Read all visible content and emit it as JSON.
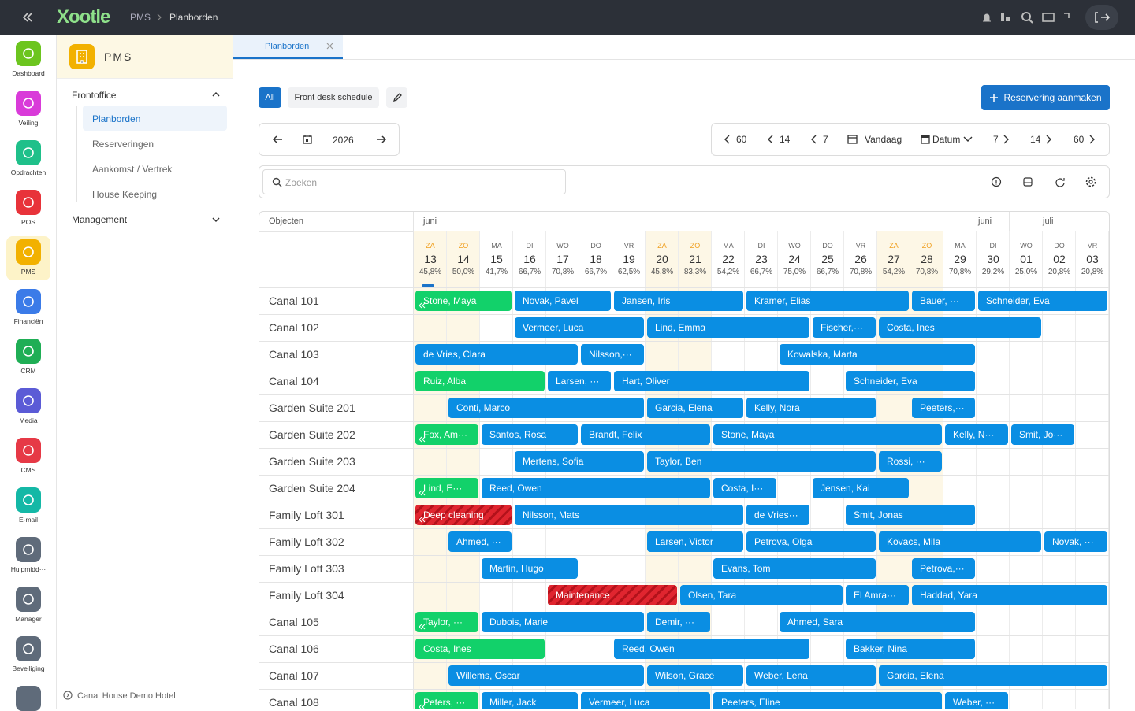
{
  "topbar": {
    "logo": "Xootle",
    "breadcrumb": [
      "PMS",
      "Planborden"
    ]
  },
  "rail": [
    {
      "label": "Dashboard",
      "color": "#6cc51f"
    },
    {
      "label": "Veiling",
      "color": "#d93bd9"
    },
    {
      "label": "Opdrachten",
      "color": "#1fc08a"
    },
    {
      "label": "POS",
      "color": "#e8333a"
    },
    {
      "label": "PMS",
      "color": "#f2b100",
      "active": true
    },
    {
      "label": "Financiën",
      "color": "#3b7be8"
    },
    {
      "label": "CRM",
      "color": "#1fae55"
    },
    {
      "label": "Media",
      "color": "#5b5bd6"
    },
    {
      "label": "CMS",
      "color": "#e63946"
    },
    {
      "label": "E-mail",
      "color": "#14b8a6"
    },
    {
      "label": "Hulpmidd···",
      "color": "#5f6b7a"
    },
    {
      "label": "Manager",
      "color": "#5f6b7a"
    },
    {
      "label": "Beveiliging",
      "color": "#5f6b7a"
    }
  ],
  "sidenav": {
    "title": "PMS",
    "sections": [
      {
        "label": "Frontoffice",
        "items": [
          "Planborden",
          "Reserveringen",
          "Aankomst / Vertrek",
          "House Keeping"
        ]
      },
      {
        "label": "Management"
      }
    ],
    "footer": "Canal House Demo Hotel"
  },
  "tabs": [
    "Planborden"
  ],
  "toolbar": {
    "filters": [
      "All",
      "Front desk schedule"
    ],
    "create_button": "Reservering aanmaken",
    "year": "2026",
    "back": [
      "60",
      "14",
      "7"
    ],
    "today": "Vandaag",
    "date_mode": "Datum",
    "forward": [
      "7",
      "14",
      "60"
    ],
    "search_placeholder": "Zoeken"
  },
  "schedule": {
    "objects_header": "Objecten",
    "months": [
      "juni",
      "juni",
      "juli"
    ],
    "days": [
      {
        "dow": "ZA",
        "day": "13",
        "occupancy": "45,8%",
        "weekend": true
      },
      {
        "dow": "ZO",
        "day": "14",
        "occupancy": "50,0%",
        "weekend": true
      },
      {
        "dow": "MA",
        "day": "15",
        "occupancy": "41,7%"
      },
      {
        "dow": "DI",
        "day": "16",
        "occupancy": "66,7%"
      },
      {
        "dow": "WO",
        "day": "17",
        "occupancy": "70,8%"
      },
      {
        "dow": "DO",
        "day": "18",
        "occupancy": "66,7%"
      },
      {
        "dow": "VR",
        "day": "19",
        "occupancy": "62,5%"
      },
      {
        "dow": "ZA",
        "day": "20",
        "occupancy": "45,8%",
        "weekend": true
      },
      {
        "dow": "ZO",
        "day": "21",
        "occupancy": "83,3%",
        "weekend": true
      },
      {
        "dow": "MA",
        "day": "22",
        "occupancy": "54,2%"
      },
      {
        "dow": "DI",
        "day": "23",
        "occupancy": "66,7%"
      },
      {
        "dow": "WO",
        "day": "24",
        "occupancy": "75,0%"
      },
      {
        "dow": "DO",
        "day": "25",
        "occupancy": "66,7%"
      },
      {
        "dow": "VR",
        "day": "26",
        "occupancy": "70,8%"
      },
      {
        "dow": "ZA",
        "day": "27",
        "occupancy": "54,2%",
        "weekend": true
      },
      {
        "dow": "ZO",
        "day": "28",
        "occupancy": "70,8%",
        "weekend": true
      },
      {
        "dow": "MA",
        "day": "29",
        "occupancy": "70,8%"
      },
      {
        "dow": "DI",
        "day": "30",
        "occupancy": "29,2%"
      },
      {
        "dow": "WO",
        "day": "01",
        "occupancy": "25,0%"
      },
      {
        "dow": "DO",
        "day": "02",
        "occupancy": "20,8%"
      },
      {
        "dow": "VR",
        "day": "03",
        "occupancy": "20,8%"
      }
    ],
    "rows": [
      {
        "name": "Canal 101",
        "bookings": [
          {
            "guest": "Stone, Maya",
            "checkin": "12",
            "checkout": "16",
            "color": "#12d16a"
          },
          {
            "guest": "Novak, Pavel",
            "checkin": "16",
            "checkout": "19",
            "color": "#0a8ee3"
          },
          {
            "guest": "Jansen, Iris",
            "checkin": "19",
            "checkout": "23",
            "color": "#0a8ee3"
          },
          {
            "guest": "Kramer, Elias",
            "checkin": "23",
            "checkout": "28",
            "color": "#0a8ee3"
          },
          {
            "guest": "Bauer, ···",
            "checkin": "28",
            "checkout": "30",
            "color": "#0a8ee3"
          },
          {
            "guest": "Schneider, Eva",
            "checkin": "30",
            "checkout": "04",
            "color": "#0a8ee3"
          }
        ]
      },
      {
        "name": "Canal 102",
        "bookings": [
          {
            "guest": "Vermeer, Luca",
            "checkin": "16",
            "checkout": "20",
            "color": "#0a8ee3"
          },
          {
            "guest": "Lind, Emma",
            "checkin": "20",
            "checkout": "25",
            "color": "#0a8ee3"
          },
          {
            "guest": "Fischer,···",
            "checkin": "25",
            "checkout": "27",
            "color": "#0a8ee3"
          },
          {
            "guest": "Costa, Ines",
            "checkin": "27",
            "checkout": "02",
            "color": "#0a8ee3"
          }
        ]
      },
      {
        "name": "Canal 103",
        "bookings": [
          {
            "guest": "de Vries, Clara",
            "checkin": "13",
            "checkout": "18",
            "color": "#0a8ee3"
          },
          {
            "guest": "Nilsson,···",
            "checkin": "18",
            "checkout": "20",
            "color": "#0a8ee3"
          },
          {
            "guest": "Kowalska, Marta",
            "checkin": "24",
            "checkout": "30",
            "color": "#0a8ee3"
          }
        ]
      },
      {
        "name": "Canal 104",
        "bookings": [
          {
            "guest": "Ruiz, Alba",
            "checkin": "13",
            "checkout": "17",
            "color": "#12d16a"
          },
          {
            "guest": "Larsen, ···",
            "checkin": "17",
            "checkout": "19",
            "color": "#0a8ee3"
          },
          {
            "guest": "Hart, Oliver",
            "checkin": "19",
            "checkout": "25",
            "color": "#0a8ee3"
          },
          {
            "guest": "Schneider, Eva",
            "checkin": "26",
            "checkout": "30",
            "color": "#0a8ee3"
          }
        ]
      },
      {
        "name": "Garden Suite 201",
        "bookings": [
          {
            "guest": "Conti, Marco",
            "checkin": "14",
            "checkout": "20",
            "color": "#0a8ee3"
          },
          {
            "guest": "Garcia, Elena",
            "checkin": "20",
            "checkout": "23",
            "color": "#0a8ee3"
          },
          {
            "guest": "Kelly, Nora",
            "checkin": "23",
            "checkout": "27",
            "color": "#0a8ee3"
          },
          {
            "guest": "Peeters,···",
            "checkin": "28",
            "checkout": "30",
            "color": "#0a8ee3"
          }
        ]
      },
      {
        "name": "Garden Suite 202",
        "bookings": [
          {
            "guest": "Fox, Am···",
            "checkin": "12",
            "checkout": "15",
            "color": "#12d16a"
          },
          {
            "guest": "Santos, Rosa",
            "checkin": "15",
            "checkout": "18",
            "color": "#0a8ee3"
          },
          {
            "guest": "Brandt, Felix",
            "checkin": "18",
            "checkout": "22",
            "color": "#0a8ee3"
          },
          {
            "guest": "Stone, Maya",
            "checkin": "22",
            "checkout": "29",
            "color": "#0a8ee3"
          },
          {
            "guest": "Kelly, N···",
            "checkin": "29",
            "checkout": "01",
            "color": "#0a8ee3"
          },
          {
            "guest": "Smit, Jo···",
            "checkin": "01",
            "checkout": "03",
            "color": "#0a8ee3"
          }
        ]
      },
      {
        "name": "Garden Suite 203",
        "bookings": [
          {
            "guest": "Mertens, Sofia",
            "checkin": "16",
            "checkout": "20",
            "color": "#0a8ee3"
          },
          {
            "guest": "Taylor, Ben",
            "checkin": "20",
            "checkout": "27",
            "color": "#0a8ee3"
          },
          {
            "guest": "Rossi, ···",
            "checkin": "27",
            "checkout": "29",
            "color": "#0a8ee3"
          }
        ]
      },
      {
        "name": "Garden Suite 204",
        "bookings": [
          {
            "guest": "Lind, E···",
            "checkin": "12",
            "checkout": "15",
            "color": "#12d16a"
          },
          {
            "guest": "Reed, Owen",
            "checkin": "15",
            "checkout": "22",
            "color": "#0a8ee3"
          },
          {
            "guest": "Costa, I···",
            "checkin": "22",
            "checkout": "24",
            "color": "#0a8ee3"
          },
          {
            "guest": "Jensen, Kai",
            "checkin": "25",
            "checkout": "28",
            "color": "#0a8ee3"
          }
        ]
      },
      {
        "name": "Family Loft 301",
        "bookings": [
          {
            "guest": "Deep cleaning",
            "checkin": "12",
            "checkout": "16",
            "color": "#e0252f",
            "pattern": "hatched"
          },
          {
            "guest": "Nilsson, Mats",
            "checkin": "16",
            "checkout": "23",
            "color": "#0a8ee3"
          },
          {
            "guest": "de Vries···",
            "checkin": "23",
            "checkout": "25",
            "color": "#0a8ee3"
          },
          {
            "guest": "Smit, Jonas",
            "checkin": "26",
            "checkout": "30",
            "color": "#0a8ee3"
          }
        ]
      },
      {
        "name": "Family Loft 302",
        "bookings": [
          {
            "guest": "Ahmed, ···",
            "checkin": "14",
            "checkout": "16",
            "color": "#0a8ee3"
          },
          {
            "guest": "Larsen, Victor",
            "checkin": "20",
            "checkout": "23",
            "color": "#0a8ee3"
          },
          {
            "guest": "Petrova, Olga",
            "checkin": "23",
            "checkout": "27",
            "color": "#0a8ee3"
          },
          {
            "guest": "Kovacs, Mila",
            "checkin": "27",
            "checkout": "02",
            "color": "#0a8ee3"
          },
          {
            "guest": "Novak, ···",
            "checkin": "02",
            "checkout": "04",
            "color": "#0a8ee3"
          }
        ]
      },
      {
        "name": "Family Loft 303",
        "bookings": [
          {
            "guest": "Martin, Hugo",
            "checkin": "15",
            "checkout": "18",
            "color": "#0a8ee3"
          },
          {
            "guest": "Evans, Tom",
            "checkin": "22",
            "checkout": "27",
            "color": "#0a8ee3"
          },
          {
            "guest": "Petrova,···",
            "checkin": "28",
            "checkout": "30",
            "color": "#0a8ee3"
          }
        ]
      },
      {
        "name": "Family Loft 304",
        "bookings": [
          {
            "guest": "Maintenance",
            "checkin": "17",
            "checkout": "21",
            "color": "#e0252f",
            "pattern": "hatched"
          },
          {
            "guest": "Olsen, Tara",
            "checkin": "21",
            "checkout": "26",
            "color": "#0a8ee3"
          },
          {
            "guest": "El Amra···",
            "checkin": "26",
            "checkout": "28",
            "color": "#0a8ee3"
          },
          {
            "guest": "Haddad, Yara",
            "checkin": "28",
            "checkout": "04",
            "color": "#0a8ee3"
          }
        ]
      },
      {
        "name": "Canal 105",
        "bookings": [
          {
            "guest": "Taylor, ···",
            "checkin": "12",
            "checkout": "15",
            "color": "#12d16a"
          },
          {
            "guest": "Dubois, Marie",
            "checkin": "15",
            "checkout": "20",
            "color": "#0a8ee3"
          },
          {
            "guest": "Demir, ···",
            "checkin": "20",
            "checkout": "22",
            "color": "#0a8ee3"
          },
          {
            "guest": "Ahmed, Sara",
            "checkin": "24",
            "checkout": "30",
            "color": "#0a8ee3"
          }
        ]
      },
      {
        "name": "Canal 106",
        "bookings": [
          {
            "guest": "Costa, Ines",
            "checkin": "13",
            "checkout": "17",
            "color": "#12d16a"
          },
          {
            "guest": "Reed, Owen",
            "checkin": "19",
            "checkout": "25",
            "color": "#0a8ee3"
          },
          {
            "guest": "Bakker, Nina",
            "checkin": "26",
            "checkout": "30",
            "color": "#0a8ee3"
          }
        ]
      },
      {
        "name": "Canal 107",
        "bookings": [
          {
            "guest": "Willems, Oscar",
            "checkin": "14",
            "checkout": "20",
            "color": "#0a8ee3"
          },
          {
            "guest": "Wilson, Grace",
            "checkin": "20",
            "checkout": "23",
            "color": "#0a8ee3"
          },
          {
            "guest": "Weber, Lena",
            "checkin": "23",
            "checkout": "27",
            "color": "#0a8ee3"
          },
          {
            "guest": "Garcia, Elena",
            "checkin": "27",
            "checkout": "04",
            "color": "#0a8ee3"
          }
        ]
      },
      {
        "name": "Canal 108",
        "bookings": [
          {
            "guest": "Peters, ···",
            "checkin": "12",
            "checkout": "15",
            "color": "#12d16a"
          },
          {
            "guest": "Miller, Jack",
            "checkin": "15",
            "checkout": "18",
            "color": "#0a8ee3"
          },
          {
            "guest": "Vermeer, Luca",
            "checkin": "18",
            "checkout": "22",
            "color": "#0a8ee3"
          },
          {
            "guest": "Peeters, Eline",
            "checkin": "22",
            "checkout": "29",
            "color": "#0a8ee3"
          },
          {
            "guest": "Weber, ···",
            "checkin": "29",
            "checkout": "01",
            "color": "#0a8ee3"
          }
        ]
      }
    ]
  }
}
